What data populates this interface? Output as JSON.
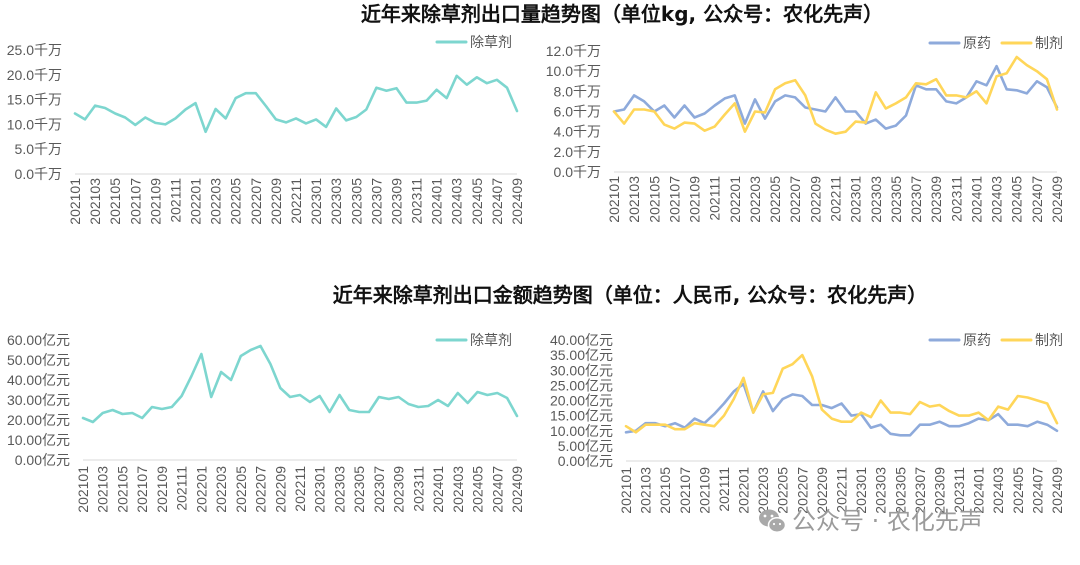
{
  "titles": {
    "volume": "近年来除草剂出口量趋势图（单位kg, 公众号：农化先声）",
    "amount": "近年来除草剂出口金额趋势图（单位：人民币, 公众号：农化先声）"
  },
  "watermark": {
    "text": "公众号 · 农化先声",
    "icon": "wechat-icon"
  },
  "chart_data": [
    {
      "type": "line",
      "x_tick_labels": [
        "202101",
        "202103",
        "202105",
        "202107",
        "202109",
        "202111",
        "202201",
        "202203",
        "202205",
        "202207",
        "202209",
        "202211",
        "202301",
        "202303",
        "202305",
        "202307",
        "202309",
        "202311",
        "202401",
        "202403",
        "202405",
        "202407",
        "202409"
      ],
      "x_tick_every": 2,
      "yticks": [
        "0.0千万",
        "5.0千万",
        "10.0千万",
        "15.0千万",
        "20.0千万",
        "25.0千万"
      ],
      "ylim": [
        0,
        25
      ],
      "series": [
        {
          "name": "除草剂",
          "color": "#7dd6cf",
          "values": [
            12.2,
            11.0,
            13.8,
            13.3,
            12.2,
            11.4,
            9.9,
            11.4,
            10.3,
            10.0,
            11.2,
            13.0,
            14.3,
            8.5,
            13.1,
            11.2,
            15.3,
            16.3,
            16.3,
            13.7,
            11.0,
            10.4,
            11.2,
            10.2,
            11.0,
            9.5,
            13.2,
            10.8,
            11.5,
            13.0,
            17.4,
            16.8,
            17.3,
            14.4,
            14.4,
            14.8,
            17.0,
            15.3,
            19.8,
            18.0,
            19.5,
            18.3,
            19.0,
            17.4,
            12.7
          ]
        }
      ]
    },
    {
      "type": "line",
      "x_tick_labels": [
        "202101",
        "202103",
        "202105",
        "202107",
        "202109",
        "202111",
        "202201",
        "202203",
        "202205",
        "202207",
        "202209",
        "202211",
        "202301",
        "202303",
        "202305",
        "202307",
        "202309",
        "202311",
        "202401",
        "202403",
        "202405",
        "202407",
        "202409"
      ],
      "x_tick_every": 2,
      "yticks": [
        "0.0千万",
        "2.0千万",
        "4.0千万",
        "6.0千万",
        "8.0千万",
        "10.0千万",
        "12.0千万"
      ],
      "ylim": [
        0,
        12
      ],
      "series": [
        {
          "name": "原药",
          "color": "#8eaadb",
          "values": [
            6.0,
            6.2,
            7.6,
            7.0,
            6.0,
            6.6,
            5.4,
            6.6,
            5.4,
            5.8,
            6.6,
            7.3,
            7.6,
            4.8,
            7.2,
            5.3,
            7.0,
            7.6,
            7.4,
            6.4,
            6.2,
            6.0,
            7.4,
            6.0,
            6.0,
            4.8,
            5.2,
            4.3,
            4.6,
            5.6,
            8.6,
            8.2,
            8.2,
            7.0,
            6.8,
            7.4,
            9.0,
            8.6,
            10.5,
            8.2,
            8.1,
            7.8,
            9.0,
            8.4,
            6.4
          ]
        },
        {
          "name": "制剂",
          "color": "#ffd659",
          "values": [
            6.0,
            4.8,
            6.2,
            6.2,
            6.0,
            4.7,
            4.3,
            4.9,
            4.8,
            4.1,
            4.5,
            5.7,
            6.8,
            4.0,
            6.0,
            5.9,
            8.2,
            8.8,
            9.1,
            7.6,
            4.8,
            4.2,
            3.8,
            4.0,
            5.0,
            4.9,
            7.9,
            6.3,
            6.8,
            7.4,
            8.8,
            8.7,
            9.2,
            7.6,
            7.6,
            7.4,
            8.0,
            6.8,
            9.5,
            9.8,
            11.4,
            10.6,
            10.0,
            9.2,
            6.2
          ]
        }
      ]
    },
    {
      "type": "line",
      "x_tick_labels": [
        "202101",
        "202103",
        "202105",
        "202107",
        "202109",
        "202111",
        "202201",
        "202203",
        "202205",
        "202207",
        "202209",
        "202211",
        "202301",
        "202303",
        "202305",
        "202307",
        "202309",
        "202311",
        "202401",
        "202403",
        "202405",
        "202407",
        "202409"
      ],
      "x_tick_every": 2,
      "yticks": [
        "0.00亿元",
        "10.00亿元",
        "20.00亿元",
        "30.00亿元",
        "40.00亿元",
        "50.00亿元",
        "60.00亿元"
      ],
      "ylim": [
        0,
        60
      ],
      "series": [
        {
          "name": "除草剂",
          "color": "#7dd6cf",
          "values": [
            21,
            19,
            23.5,
            25,
            23,
            23.5,
            21,
            26.5,
            25.5,
            26.5,
            32,
            42,
            53,
            31.5,
            44,
            40,
            52,
            55,
            57,
            48,
            36,
            31.5,
            32.5,
            29,
            32,
            24,
            32.5,
            25,
            24,
            24,
            31.5,
            30.5,
            31.5,
            28,
            26.5,
            27,
            30,
            27,
            33.5,
            28.5,
            34,
            32.5,
            33.5,
            31,
            22
          ]
        }
      ]
    },
    {
      "type": "line",
      "x_tick_labels": [
        "202101",
        "202103",
        "202105",
        "202107",
        "202109",
        "202111",
        "202201",
        "202203",
        "202205",
        "202207",
        "202209",
        "202211",
        "202301",
        "202303",
        "202305",
        "202307",
        "202309",
        "202311",
        "202401",
        "202403",
        "202405",
        "202407",
        "202409"
      ],
      "x_tick_every": 2,
      "yticks": [
        "0.00亿元",
        "5.00亿元",
        "10.00亿元",
        "15.00亿元",
        "20.00亿元",
        "25.00亿元",
        "30.00亿元",
        "35.00亿元",
        "40.00亿元"
      ],
      "ylim": [
        0,
        40
      ],
      "series": [
        {
          "name": "原药",
          "color": "#8eaadb",
          "values": [
            9.5,
            10.0,
            12.5,
            12.5,
            11.5,
            12.5,
            11.0,
            14.0,
            12.5,
            15.5,
            19.0,
            23.0,
            25.5,
            16.0,
            23.0,
            16.5,
            20.5,
            22.0,
            21.5,
            18.5,
            18.5,
            17.5,
            19.0,
            15.0,
            15.5,
            11.0,
            12.0,
            9.0,
            8.5,
            8.5,
            12.0,
            12.0,
            13.0,
            11.5,
            11.5,
            12.5,
            14.0,
            13.5,
            15.5,
            12.0,
            12.0,
            11.5,
            13.0,
            12.0,
            10.0
          ]
        },
        {
          "name": "制剂",
          "color": "#ffd659",
          "values": [
            11.5,
            9.5,
            12.0,
            12.0,
            12.0,
            10.5,
            10.5,
            12.5,
            12.0,
            11.5,
            15.0,
            20.5,
            27.5,
            16.0,
            22.0,
            22.5,
            30.5,
            32.0,
            35.0,
            28.0,
            17.0,
            14.0,
            13.0,
            13.0,
            16.0,
            14.5,
            20.0,
            16.0,
            16.0,
            15.5,
            19.5,
            18.0,
            18.5,
            16.5,
            15.0,
            15.0,
            16.0,
            13.5,
            18.0,
            17.0,
            21.5,
            21.0,
            20.0,
            19.0,
            12.5
          ]
        }
      ]
    }
  ]
}
